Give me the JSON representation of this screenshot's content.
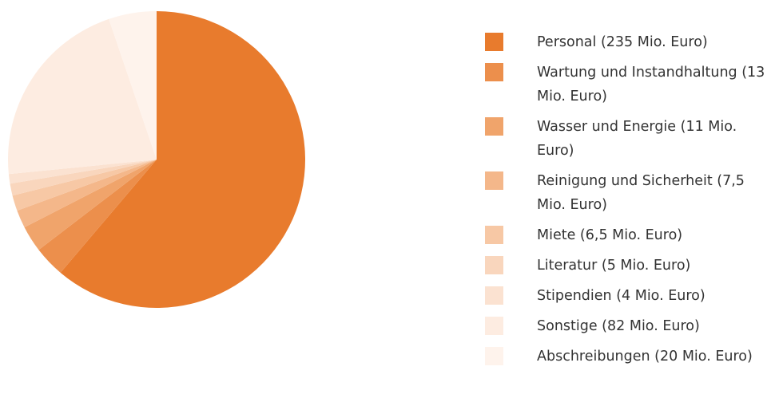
{
  "chart_data": {
    "type": "pie",
    "categories": [
      "Personal (235 Mio. Euro)",
      "Wartung und Instandhaltung (13 Mio. Euro)",
      "Wasser und Energie (11 Mio. Euro)",
      "Reinigung und Sicherheit (7,5 Mio. Euro)",
      "Miete (6,5 Mio. Euro)",
      "Literatur (5 Mio. Euro)",
      "Stipendien (4 Mio. Euro)",
      "Sonstige (82 Mio. Euro)",
      "Abschreibungen (20 Mio. Euro)"
    ],
    "values": [
      235,
      13,
      11,
      7.5,
      6.5,
      5,
      4,
      82,
      20
    ],
    "colors": [
      "#e87b2d",
      "#ec8f4c",
      "#f0a46b",
      "#f4b78a",
      "#f7c8a5",
      "#f9d6bd",
      "#fbe2d1",
      "#fdece1",
      "#fef3ec"
    ],
    "legend": "right"
  }
}
